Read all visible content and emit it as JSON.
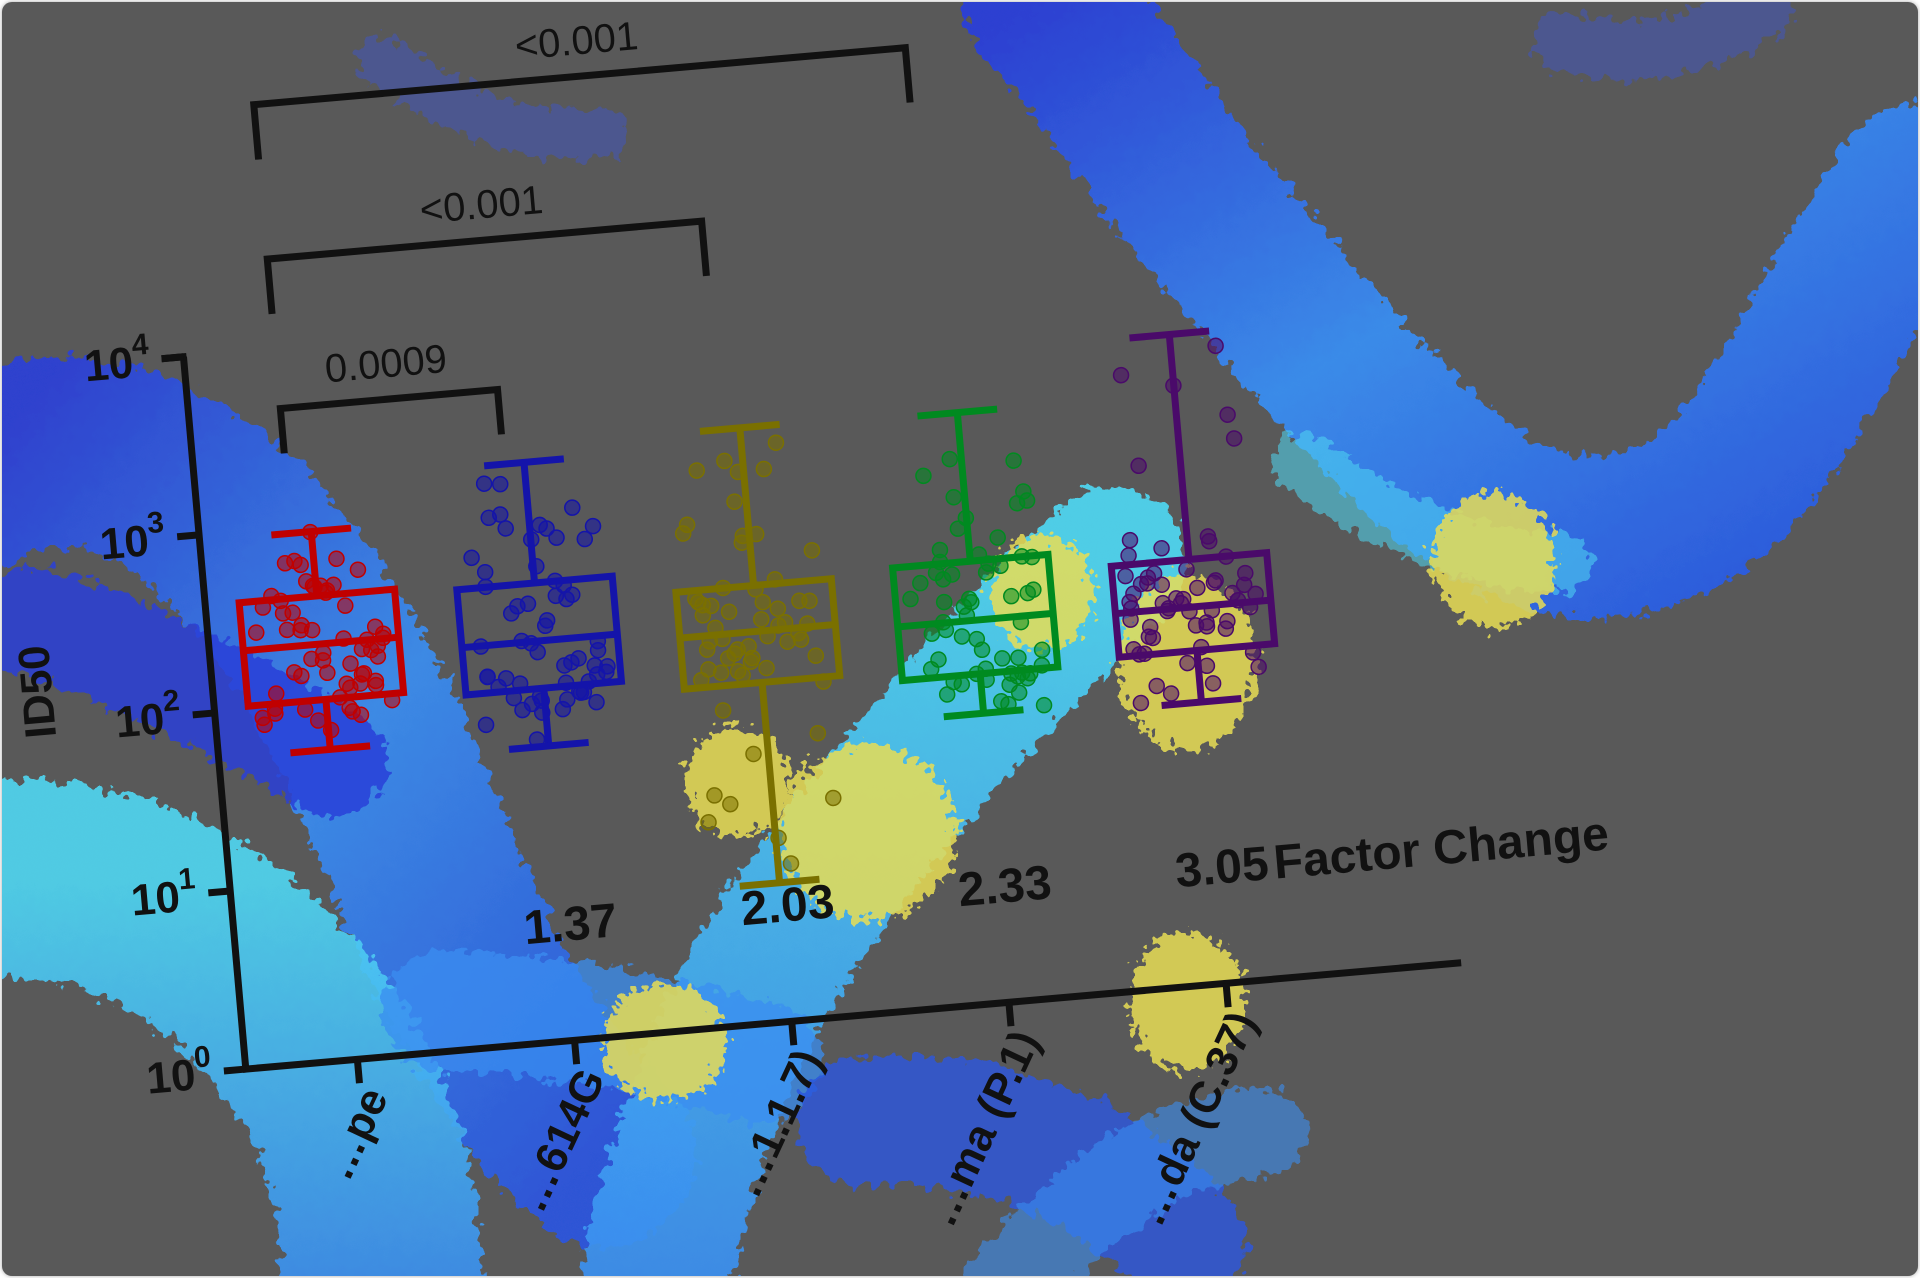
{
  "colors": {
    "background": "#595959",
    "virus_blue": "#3a8ef0",
    "virus_cyan": "#4fd7f2",
    "virus_deep": "#2a3fd8",
    "spike_yellow": "#e8dd55",
    "axis": "#111111"
  },
  "chart_data": {
    "type": "box",
    "ylabel": "ID50",
    "yscale": "log10",
    "ylim": [
      1,
      10000
    ],
    "y_ticks": [
      {
        "base": "10",
        "exp": "0"
      },
      {
        "base": "10",
        "exp": "1"
      },
      {
        "base": "10",
        "exp": "2"
      },
      {
        "base": "10",
        "exp": "3"
      },
      {
        "base": "10",
        "exp": "4"
      }
    ],
    "categories": [
      "…pe",
      "…614G",
      "…1.1.7)",
      "…ma (P.1)",
      "…da (C.37)"
    ],
    "series": [
      {
        "color": "#c00000",
        "min": 55,
        "q1": 105,
        "median": 215,
        "q3": 400,
        "max": 920
      },
      {
        "color": "#1414aa",
        "min": 45,
        "q1": 95,
        "median": 175,
        "q3": 370,
        "max": 1760
      },
      {
        "color": "#7a7000",
        "min": 6,
        "q1": 80,
        "median": 155,
        "q3": 280,
        "max": 2150
      },
      {
        "color": "#008a20",
        "min": 42,
        "q1": 70,
        "median": 140,
        "q3": 300,
        "max": 2050
      },
      {
        "color": "#4a0a6a",
        "min": 38,
        "q1": 74,
        "median": 130,
        "q3": 240,
        "max": 4400
      }
    ],
    "comparisons": [
      {
        "from": 0,
        "to": 1,
        "p": "0.0009"
      },
      {
        "from": 0,
        "to": 2,
        "p": "<0.001"
      },
      {
        "from": 0,
        "to": 3,
        "p": "<0.001"
      }
    ],
    "factor_change": {
      "title": "Factor Change",
      "values": [
        "1.37",
        "2.03",
        "2.33",
        "3.05"
      ]
    }
  }
}
